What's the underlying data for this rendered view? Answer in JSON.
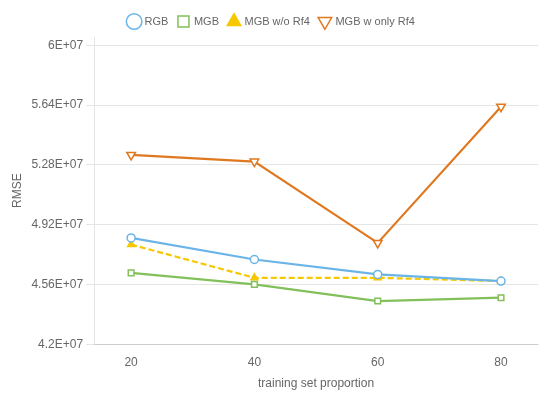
{
  "chart_data": {
    "type": "line",
    "x": [
      20,
      40,
      60,
      80
    ],
    "series": [
      {
        "name": "RGB",
        "color": "#6ab4e8",
        "values": [
          48400000,
          47100000,
          46200000,
          45800000
        ],
        "marker": "circle",
        "line_style": "solid"
      },
      {
        "name": "MGB",
        "color": "#82c05a",
        "values": [
          46300000,
          45600000,
          44600000,
          44800000
        ],
        "marker": "square",
        "line_style": "solid"
      },
      {
        "name": "MGB w/o Rf4",
        "color": "#f5c800",
        "values": [
          48000000,
          46000000,
          46000000,
          45800000
        ],
        "marker": "triangle-up",
        "line_style": "dashed"
      },
      {
        "name": "MGB w only Rf4",
        "color": "#e07820",
        "values": [
          53400000,
          53000000,
          48100000,
          56300000
        ],
        "marker": "triangle-down",
        "line_style": "solid"
      }
    ],
    "xlabel": "training set proportion",
    "ylabel": "RMSE",
    "xlim": [
      14,
      86
    ],
    "xticks": [
      20,
      40,
      60,
      80
    ],
    "ylim": [
      42000000,
      60500000
    ],
    "yticks": [
      {
        "value": 42000000,
        "label": "4.2E+07"
      },
      {
        "value": 45600000,
        "label": "4.56E+07"
      },
      {
        "value": 49200000,
        "label": "4.92E+07"
      },
      {
        "value": 52800000,
        "label": "5.28E+07"
      },
      {
        "value": 56400000,
        "label": "5.64E+07"
      },
      {
        "value": 60000000,
        "label": "6E+07"
      }
    ],
    "grid": "y",
    "legend": "top"
  }
}
